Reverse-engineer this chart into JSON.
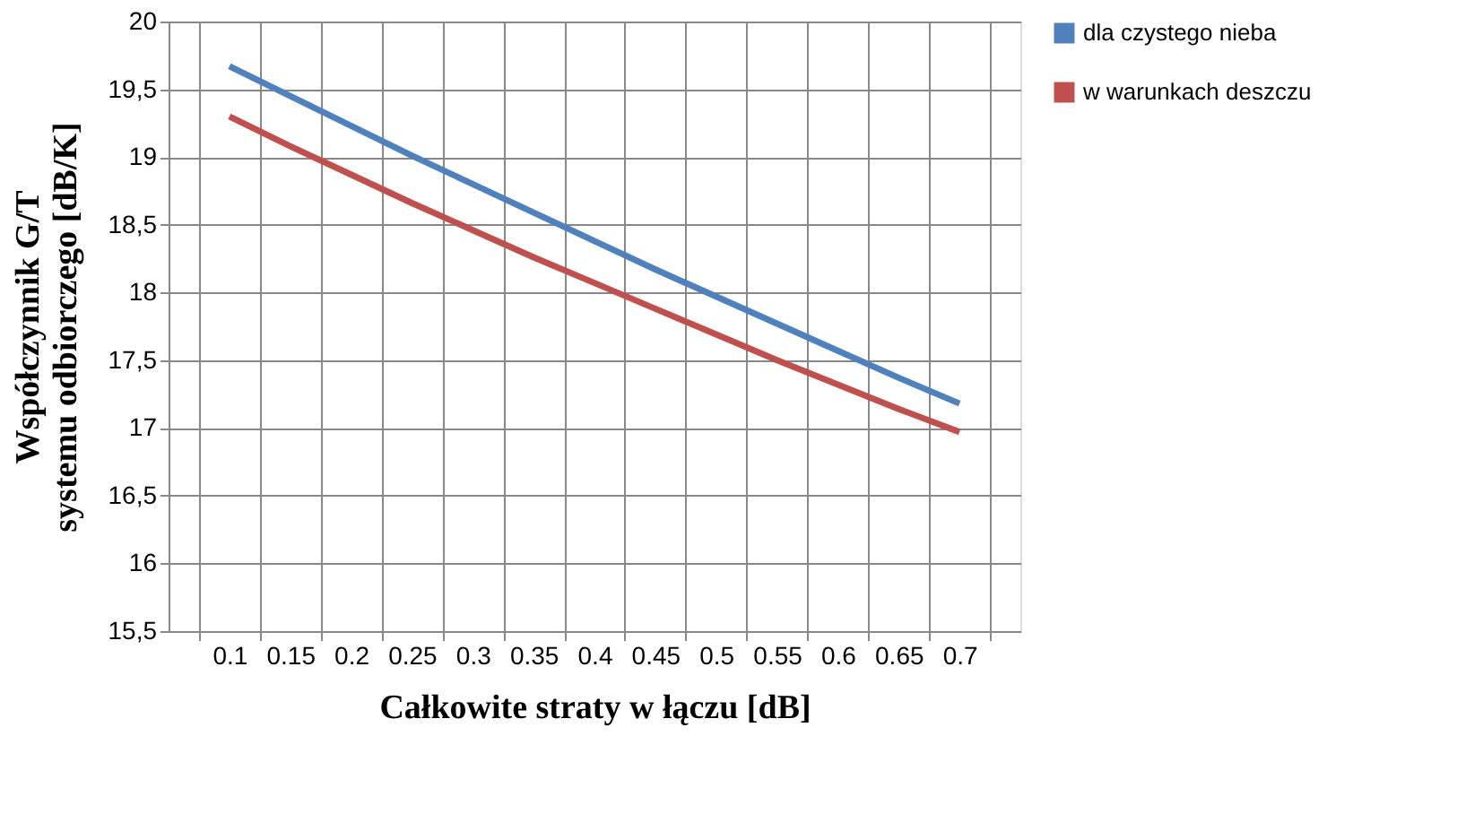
{
  "chart_data": {
    "type": "line",
    "xlabel": "Całkowite straty w łączu [dB]",
    "ylabel": "Współczynnik G/T\nsystemu odbiorczego [dB/K]",
    "categories": [
      "0.1",
      "0.15",
      "0.2",
      "0.25",
      "0.3",
      "0.35",
      "0.4",
      "0.45",
      "0.5",
      "0.55",
      "0.6",
      "0.65",
      "0.7"
    ],
    "series": [
      {
        "name": "dla czystego nieba",
        "color": "#4f81bd",
        "values": [
          19.67,
          19.45,
          19.23,
          19.01,
          18.8,
          18.59,
          18.38,
          18.17,
          17.97,
          17.77,
          17.57,
          17.37,
          17.18
        ]
      },
      {
        "name": "w warunkach deszczu",
        "color": "#c0504d",
        "values": [
          19.3,
          19.08,
          18.87,
          18.66,
          18.46,
          18.26,
          18.07,
          17.88,
          17.69,
          17.5,
          17.32,
          17.14,
          16.97
        ]
      }
    ],
    "ylim": [
      15.5,
      20
    ],
    "yticks": [
      {
        "value": 15.5,
        "label": "15,5"
      },
      16,
      {
        "value": 16.5,
        "label": "16,5"
      },
      17,
      {
        "value": 17.5,
        "label": "17,5"
      },
      18,
      {
        "value": 18.5,
        "label": "18,5"
      },
      19,
      {
        "value": 19.5,
        "label": "19,5"
      },
      20
    ],
    "grid": true,
    "legend": "right",
    "marker": "none",
    "line_style": "solid"
  }
}
